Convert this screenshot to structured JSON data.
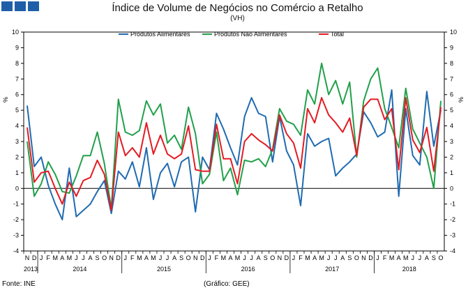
{
  "header": {
    "title": "Índice de Volume de Negócios no Comércio a Retalho",
    "subtitle": "(VH)"
  },
  "footer": {
    "source": "Fonte: INE",
    "credit": "(Gráfico: GEE)"
  },
  "colors": {
    "brand_squares": "#1f5fa8",
    "alimentares": "#1f6bb0",
    "nao_alimentares": "#21a04a",
    "total": "#e31b23"
  },
  "chart_data": {
    "type": "line",
    "title": "Índice de Volume de Negócios no Comércio a Retalho",
    "subtitle": "(VH)",
    "ylabel": "%",
    "ylim": [
      -4,
      10
    ],
    "yticks": [
      -4,
      -3,
      -2,
      -1,
      0,
      1,
      2,
      3,
      4,
      5,
      6,
      7,
      8,
      9,
      10
    ],
    "legend_position": "top-center",
    "categories": [
      "N",
      "D",
      "J",
      "F",
      "M",
      "A",
      "M",
      "J",
      "J",
      "A",
      "S",
      "O",
      "N",
      "D",
      "J",
      "F",
      "M",
      "A",
      "M",
      "J",
      "J",
      "A",
      "S",
      "O",
      "N",
      "D",
      "J",
      "F",
      "M",
      "A",
      "M",
      "J",
      "J",
      "A",
      "S",
      "O",
      "N",
      "D",
      "J",
      "F",
      "M",
      "A",
      "M",
      "J",
      "J",
      "A",
      "S",
      "O",
      "N",
      "D",
      "J",
      "F",
      "M",
      "A",
      "M",
      "J",
      "J",
      "A",
      "S",
      "O"
    ],
    "year_labels": [
      {
        "label": "2013",
        "start": 0,
        "end": 1
      },
      {
        "label": "2014",
        "start": 2,
        "end": 13
      },
      {
        "label": "2015",
        "start": 14,
        "end": 25
      },
      {
        "label": "2016",
        "start": 26,
        "end": 37
      },
      {
        "label": "2017",
        "start": 38,
        "end": 49
      },
      {
        "label": "2018",
        "start": 50,
        "end": 59
      }
    ],
    "series": [
      {
        "name": "Produtos Alimentares",
        "color": "#1f6bb0",
        "values": [
          5.3,
          1.4,
          2.0,
          0.2,
          -1.0,
          -2.0,
          1.3,
          -1.8,
          -1.4,
          -1.0,
          -0.2,
          0.5,
          -1.6,
          1.1,
          0.6,
          1.7,
          0.1,
          2.6,
          -0.7,
          1.0,
          1.6,
          0.1,
          1.7,
          2.0,
          -1.5,
          2.0,
          1.2,
          4.8,
          3.8,
          2.6,
          1.5,
          4.6,
          5.8,
          4.8,
          4.6,
          1.7,
          4.6,
          2.4,
          1.5,
          -1.1,
          3.5,
          2.7,
          3.0,
          3.2,
          0.8,
          1.3,
          1.7,
          2.2,
          4.9,
          4.2,
          3.3,
          3.6,
          6.3,
          -0.5,
          5.1,
          2.1,
          1.5,
          6.2,
          2.7,
          5.0
        ]
      },
      {
        "name": "Produtos Não Alimentares",
        "color": "#21a04a",
        "values": [
          3.0,
          -0.5,
          0.3,
          1.7,
          0.9,
          -0.2,
          -0.3,
          0.8,
          2.1,
          2.1,
          3.6,
          1.6,
          -1.3,
          5.7,
          3.6,
          3.4,
          3.7,
          5.6,
          4.7,
          5.4,
          2.9,
          3.4,
          2.5,
          5.2,
          3.5,
          0.3,
          0.9,
          3.6,
          0.5,
          1.3,
          -0.4,
          1.8,
          1.7,
          1.9,
          1.4,
          2.5,
          5.1,
          4.3,
          4.1,
          3.4,
          6.3,
          5.4,
          8.0,
          6.0,
          6.9,
          5.4,
          6.8,
          2.0,
          5.6,
          7.0,
          7.7,
          5.1,
          3.9,
          2.6,
          6.4,
          3.8,
          2.9,
          2.0,
          0.0,
          5.6
        ]
      },
      {
        "name": "Total",
        "color": "#e31b23",
        "values": [
          3.9,
          0.4,
          1.0,
          1.1,
          0.0,
          -1.0,
          0.4,
          -0.5,
          0.5,
          0.7,
          1.8,
          0.9,
          -1.4,
          3.6,
          2.1,
          2.6,
          2.0,
          4.2,
          2.2,
          3.4,
          2.2,
          1.9,
          2.2,
          4.0,
          1.2,
          1.1,
          1.1,
          4.1,
          1.9,
          1.9,
          0.3,
          3.0,
          3.5,
          3.1,
          2.8,
          2.4,
          4.7,
          3.5,
          2.9,
          1.3,
          5.1,
          4.2,
          5.8,
          4.7,
          4.2,
          3.6,
          4.5,
          2.1,
          5.2,
          5.7,
          5.7,
          4.4,
          5.1,
          1.2,
          5.8,
          3.1,
          2.3,
          3.9,
          1.1,
          5.2
        ]
      }
    ]
  }
}
